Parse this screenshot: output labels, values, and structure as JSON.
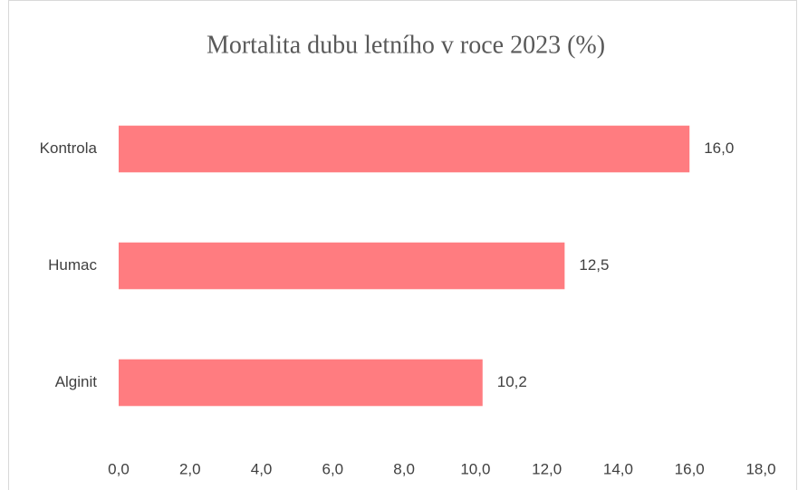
{
  "chart_data": {
    "type": "barh",
    "title": "Mortalita dubu letního v roce 2023 (%)",
    "categories": [
      "Kontrola",
      "Humac",
      "Alginit"
    ],
    "values": [
      16.0,
      12.5,
      10.2
    ],
    "value_labels": [
      "16,0",
      "12,5",
      "10,2"
    ],
    "color": "#ff7c80",
    "xlim": [
      0,
      18
    ],
    "xticks": [
      {
        "value": 0,
        "label": "0,0"
      },
      {
        "value": 2,
        "label": "2,0"
      },
      {
        "value": 4,
        "label": "4,0"
      },
      {
        "value": 6,
        "label": "6,0"
      },
      {
        "value": 8,
        "label": "8,0"
      },
      {
        "value": 10,
        "label": "10,0"
      },
      {
        "value": 12,
        "label": "12,0"
      },
      {
        "value": 14,
        "label": "14,0"
      },
      {
        "value": 16,
        "label": "16,0"
      },
      {
        "value": 18,
        "label": "18,0"
      }
    ],
    "grid": false
  }
}
